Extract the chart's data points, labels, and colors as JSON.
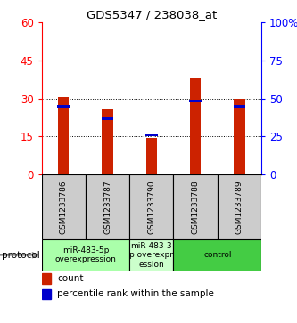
{
  "title": "GDS5347 / 238038_at",
  "samples": [
    "GSM1233786",
    "GSM1233787",
    "GSM1233790",
    "GSM1233788",
    "GSM1233789"
  ],
  "counts": [
    30.5,
    26,
    14.5,
    38,
    30
  ],
  "percentile_ranks_left": [
    27,
    22,
    15.5,
    29,
    27
  ],
  "left_ylim": [
    0,
    60
  ],
  "right_ylim": [
    0,
    100
  ],
  "left_yticks": [
    0,
    15,
    30,
    45,
    60
  ],
  "right_yticks": [
    0,
    25,
    50,
    75,
    100
  ],
  "right_yticklabels": [
    "0",
    "25",
    "50",
    "75",
    "100%"
  ],
  "bar_color": "#cc2200",
  "percentile_color": "#0000cc",
  "grid_levels": [
    15,
    30,
    45
  ],
  "groups": [
    {
      "label": "miR-483-5p\noverexpression",
      "samples": [
        0,
        1
      ],
      "color": "#aaffaa"
    },
    {
      "label": "miR-483-3\np overexpr\nession",
      "samples": [
        2
      ],
      "color": "#ccffcc"
    },
    {
      "label": "control",
      "samples": [
        3,
        4
      ],
      "color": "#44cc44"
    }
  ],
  "protocol_label": "protocol",
  "legend_count_label": "count",
  "legend_percentile_label": "percentile rank within the sample",
  "sample_box_color": "#cccccc",
  "bar_width": 0.25
}
